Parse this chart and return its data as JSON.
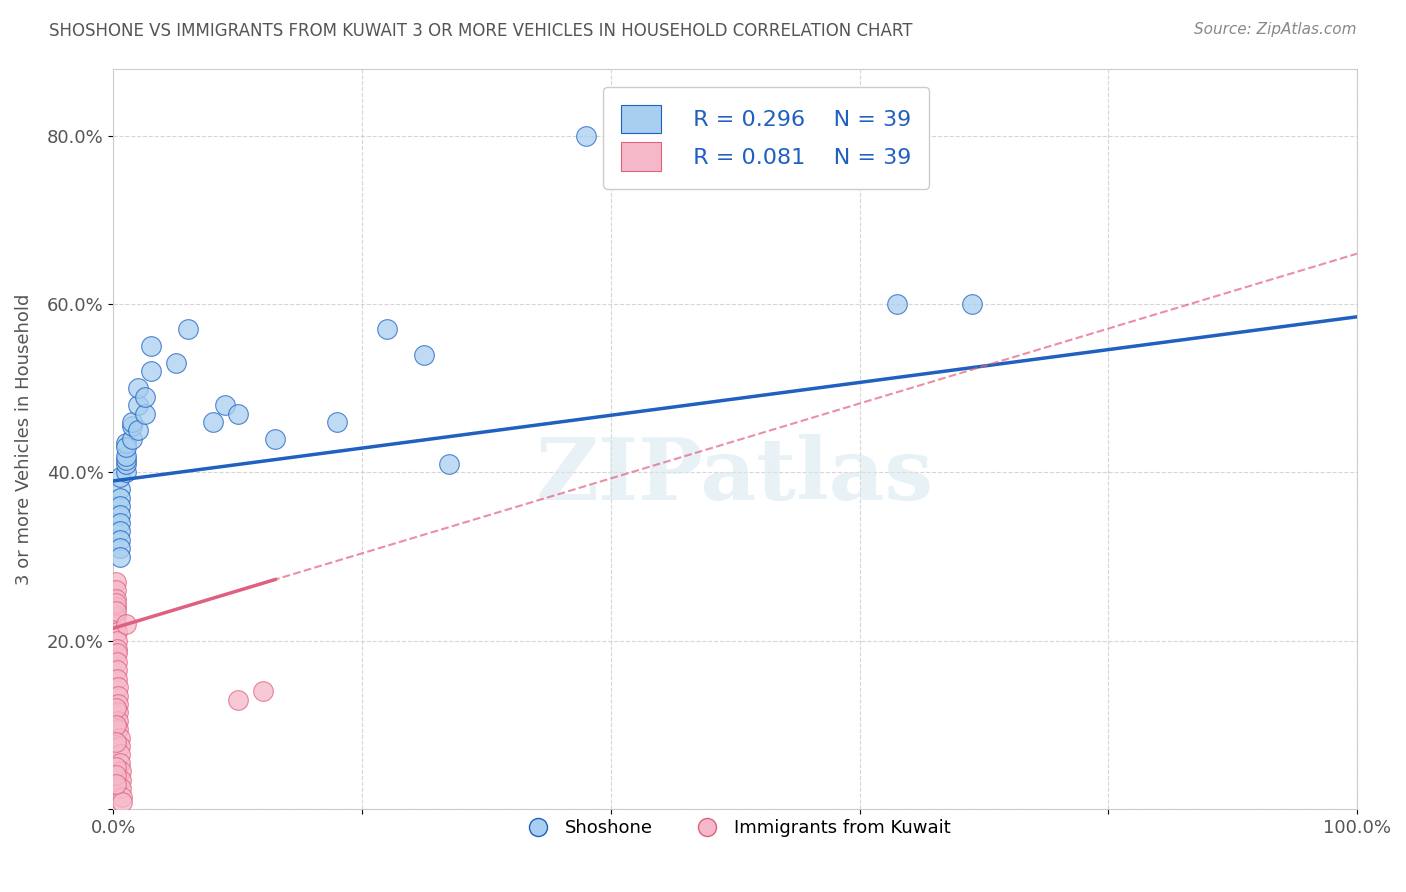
{
  "title": "SHOSHONE VS IMMIGRANTS FROM KUWAIT 3 OR MORE VEHICLES IN HOUSEHOLD CORRELATION CHART",
  "source": "Source: ZipAtlas.com",
  "ylabel": "3 or more Vehicles in Household",
  "xlim": [
    0.0,
    1.0
  ],
  "ylim": [
    0.0,
    0.88
  ],
  "legend_blue_r": "R = 0.296",
  "legend_blue_n": "N = 39",
  "legend_pink_r": "R = 0.081",
  "legend_pink_n": "N = 39",
  "legend_label_blue": "Shoshone",
  "legend_label_pink": "Immigrants from Kuwait",
  "blue_color": "#a8cff0",
  "pink_color": "#f5b8c8",
  "line_blue_color": "#2060c0",
  "line_pink_color": "#e06080",
  "watermark": "ZIPatlas",
  "blue_x": [
    0.005,
    0.005,
    0.005,
    0.005,
    0.005,
    0.005,
    0.005,
    0.005,
    0.005,
    0.01,
    0.01,
    0.01,
    0.01,
    0.01,
    0.01,
    0.015,
    0.015,
    0.015,
    0.02,
    0.02,
    0.02,
    0.025,
    0.025,
    0.03,
    0.03,
    0.05,
    0.06,
    0.08,
    0.09,
    0.1,
    0.13,
    0.18,
    0.22,
    0.25,
    0.27,
    0.63,
    0.69,
    0.38,
    0.005
  ],
  "blue_y": [
    0.38,
    0.37,
    0.36,
    0.35,
    0.34,
    0.33,
    0.32,
    0.31,
    0.395,
    0.4,
    0.41,
    0.415,
    0.42,
    0.435,
    0.43,
    0.44,
    0.455,
    0.46,
    0.45,
    0.48,
    0.5,
    0.47,
    0.49,
    0.52,
    0.55,
    0.53,
    0.57,
    0.46,
    0.48,
    0.47,
    0.44,
    0.46,
    0.57,
    0.54,
    0.41,
    0.6,
    0.6,
    0.8,
    0.3
  ],
  "pink_x": [
    0.002,
    0.002,
    0.002,
    0.002,
    0.002,
    0.002,
    0.002,
    0.002,
    0.003,
    0.003,
    0.003,
    0.003,
    0.003,
    0.003,
    0.003,
    0.004,
    0.004,
    0.004,
    0.004,
    0.004,
    0.004,
    0.005,
    0.005,
    0.005,
    0.005,
    0.006,
    0.006,
    0.006,
    0.007,
    0.007,
    0.01,
    0.002,
    0.002,
    0.002,
    0.12,
    0.1,
    0.002,
    0.002,
    0.002
  ],
  "pink_y": [
    0.27,
    0.26,
    0.25,
    0.24,
    0.23,
    0.22,
    0.245,
    0.235,
    0.21,
    0.2,
    0.19,
    0.185,
    0.175,
    0.165,
    0.155,
    0.145,
    0.135,
    0.125,
    0.115,
    0.105,
    0.095,
    0.085,
    0.075,
    0.065,
    0.055,
    0.045,
    0.035,
    0.025,
    0.015,
    0.008,
    0.22,
    0.12,
    0.1,
    0.08,
    0.14,
    0.13,
    0.05,
    0.04,
    0.03
  ],
  "background_color": "#ffffff",
  "grid_color": "#cccccc"
}
